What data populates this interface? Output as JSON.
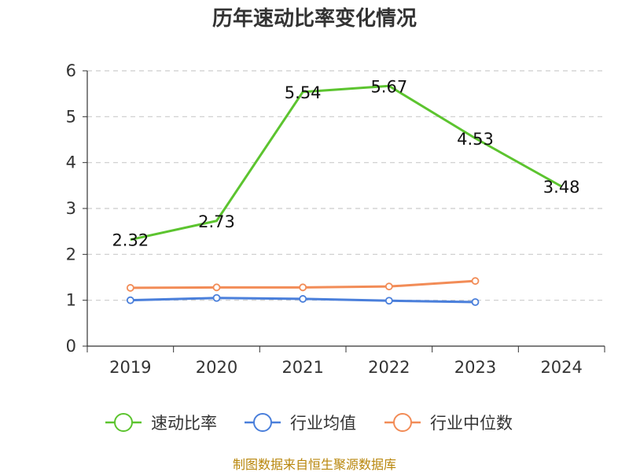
{
  "chart_data": {
    "type": "line",
    "title": "历年速动比率变化情况",
    "categories": [
      "2019",
      "2020",
      "2021",
      "2022",
      "2023",
      "2024"
    ],
    "ylim": [
      0,
      6
    ],
    "yticks": [
      0,
      1,
      2,
      3,
      4,
      5,
      6
    ],
    "grid": true,
    "legend_position": "bottom",
    "series": [
      {
        "name": "速动比率",
        "color": "#5cc42f",
        "values": [
          2.32,
          2.73,
          5.54,
          5.67,
          4.53,
          3.48
        ],
        "labels": [
          "2.32",
          "2.73",
          "5.54",
          "5.67",
          "4.53",
          "3.48"
        ],
        "show_markers": false
      },
      {
        "name": "行业均值",
        "color": "#4a7fdb",
        "values": [
          1.0,
          1.05,
          1.03,
          0.99,
          0.96,
          null
        ],
        "show_markers": true
      },
      {
        "name": "行业中位数",
        "color": "#f28c57",
        "values": [
          1.27,
          1.28,
          1.28,
          1.3,
          1.42,
          null
        ],
        "show_markers": true
      }
    ]
  },
  "footer": {
    "source": "制图数据来自恒生聚源数据库"
  }
}
